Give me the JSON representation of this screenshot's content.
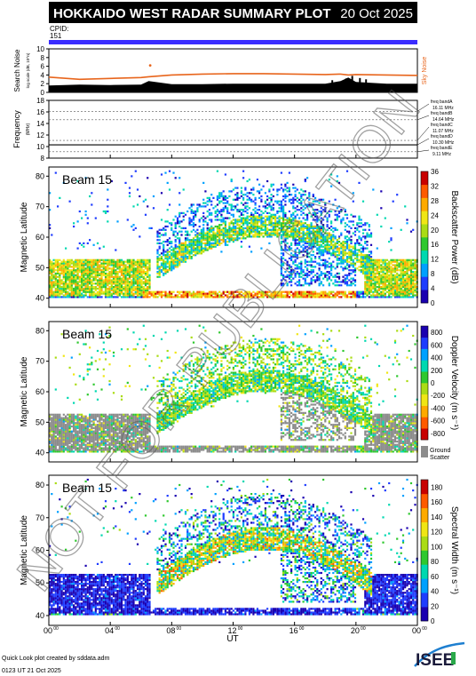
{
  "title": "HOKKAIDO WEST RADAR SUMMARY PLOT",
  "date": "20 Oct 2025",
  "cpid_label": "CPID:",
  "cpid_value": "151",
  "watermark": "NOT FOR PUBLICATION",
  "footer": {
    "line1": "Quick Look plot created by sddata.adm",
    "line2": "0123 UT 21 Oct 2025"
  },
  "logo_text": "ISEE",
  "colors": {
    "title_bg": "#000000",
    "title_fg": "#ffffff",
    "cpid_bar": "#3a2cff",
    "noise_line": "#e8651c",
    "sky_noise_label": "#e8651c",
    "ground_scatter": "#8c8c8c"
  },
  "chart_data": [
    {
      "type": "area",
      "id": "noise",
      "ylabel": "Search Noise",
      "ylabel_sub": "log scale (dB, 10^n)",
      "side_label": "Sky Noise",
      "ylim": [
        0,
        10
      ],
      "yticks": [
        0,
        2,
        4,
        6,
        8,
        10
      ],
      "x": [
        0,
        2,
        4,
        6,
        6.5,
        8,
        10,
        12,
        14,
        16,
        18,
        19,
        19.5,
        20,
        22,
        24
      ],
      "search_noise": [
        1.6,
        1.8,
        1.7,
        1.8,
        2.6,
        1.9,
        1.9,
        2.0,
        2.0,
        2.0,
        2.0,
        2.6,
        3.4,
        2.4,
        2.0,
        2.0
      ],
      "sky_noise": [
        3.5,
        3.0,
        3.2,
        3.4,
        3.6,
        4.0,
        4.2,
        4.3,
        4.3,
        4.2,
        4.1,
        4.2,
        4.0,
        4.1,
        4.0,
        3.9
      ]
    },
    {
      "type": "line",
      "id": "frequency",
      "ylabel": "Frequency",
      "ylabel_sub": "(MHz)",
      "ylim": [
        8,
        18
      ],
      "yticks": [
        8,
        10,
        12,
        14,
        16,
        18
      ],
      "bands": [
        {
          "label": "freq bandA",
          "value_label": "16.11 MHz",
          "value": 16.11
        },
        {
          "label": "freq bandB",
          "value_label": "14.64 MHz",
          "value": 14.64
        },
        {
          "label": "freq bandC",
          "value_label": "11.07 MHz",
          "value": 11.07
        },
        {
          "label": "freq bandD",
          "value_label": "10.30 MHz",
          "value": 10.3
        },
        {
          "label": "freq bandE",
          "value_label": "9.11 MHz",
          "value": 9.11
        }
      ],
      "operating_frequency": 10.3
    },
    {
      "type": "heatmap",
      "id": "power",
      "ylabel": "Magnetic Latitude",
      "beam_label": "Beam 15",
      "ylim": [
        37,
        83
      ],
      "yticks": [
        40,
        50,
        60,
        70,
        80
      ],
      "colorbar_label": "Backscatter Power (dB)",
      "colorbar_ticks": [
        0,
        4,
        8,
        12,
        16,
        20,
        24,
        28,
        32,
        36
      ],
      "colorbar_range": [
        0,
        36
      ],
      "colorbar_colors": [
        "#1a00b0",
        "#1e3cff",
        "#00a0ff",
        "#00d8b0",
        "#2ec82e",
        "#aadc14",
        "#f0e614",
        "#ffaa00",
        "#ff5a00",
        "#c80000"
      ]
    },
    {
      "type": "heatmap",
      "id": "velocity",
      "ylabel": "Magnetic Latitude",
      "beam_label": "Beam 15",
      "ylim": [
        37,
        83
      ],
      "yticks": [
        40,
        50,
        60,
        70,
        80
      ],
      "colorbar_label": "Doppler Velocity (m s⁻¹)",
      "colorbar_ticks": [
        800,
        600,
        400,
        200,
        0,
        -200,
        -400,
        -600,
        -800
      ],
      "colorbar_range": [
        -900,
        900
      ],
      "colorbar_colors": [
        "#c80000",
        "#ff5a00",
        "#ffaa00",
        "#f0e614",
        "#aadc14",
        "#2ec82e",
        "#00d8b0",
        "#00a0ff",
        "#1e3cff",
        "#1a00b0"
      ],
      "ground_label_1": "Ground",
      "ground_label_2": "Scatter"
    },
    {
      "type": "heatmap",
      "id": "width",
      "ylabel": "Magnetic Latitude",
      "beam_label": "Beam 15",
      "ylim": [
        37,
        83
      ],
      "yticks": [
        40,
        50,
        60,
        70,
        80
      ],
      "colorbar_label": "Spectral Width (m s⁻¹)",
      "colorbar_ticks": [
        0,
        20,
        40,
        60,
        80,
        100,
        120,
        140,
        160,
        180
      ],
      "colorbar_range": [
        0,
        190
      ],
      "colorbar_colors": [
        "#1a00b0",
        "#1e3cff",
        "#00a0ff",
        "#00d8b0",
        "#2ec82e",
        "#aadc14",
        "#f0e614",
        "#ffaa00",
        "#ff5a00",
        "#c80000"
      ]
    }
  ],
  "xaxis": {
    "label": "UT",
    "ticks": [
      {
        "v": 0,
        "label": "00",
        "sup": "00"
      },
      {
        "v": 4,
        "label": "04",
        "sup": "00"
      },
      {
        "v": 8,
        "label": "08",
        "sup": "00"
      },
      {
        "v": 12,
        "label": "12",
        "sup": "00"
      },
      {
        "v": 16,
        "label": "16",
        "sup": "00"
      },
      {
        "v": 20,
        "label": "20",
        "sup": "00"
      },
      {
        "v": 24,
        "label": "00",
        "sup": "00"
      }
    ]
  }
}
